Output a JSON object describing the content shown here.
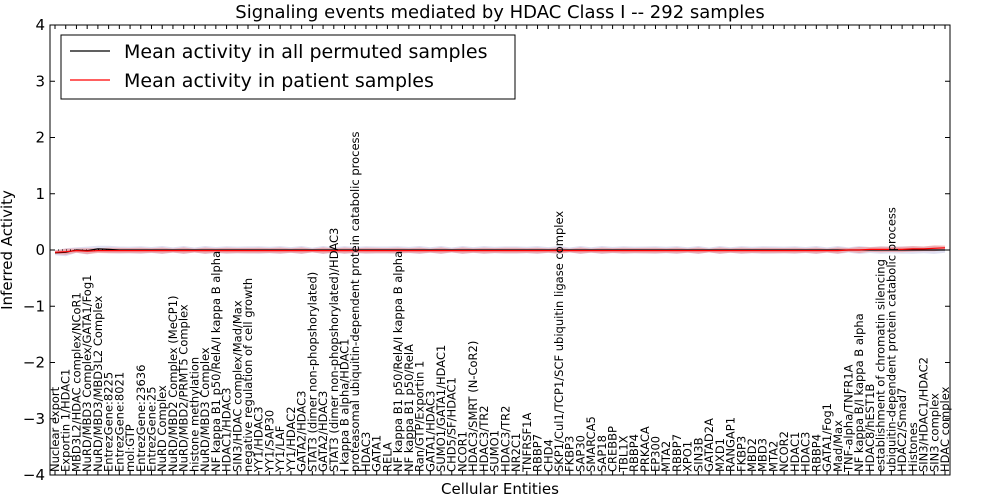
{
  "chart_data": {
    "type": "line",
    "title": "Signaling events mediated by HDAC Class I -- 292 samples",
    "xlabel": "Cellular Entities",
    "ylabel": "Inferred Activity",
    "ylim": [
      -4,
      4
    ],
    "yticks": [
      "4",
      "3",
      "2",
      "1",
      "0",
      "−1",
      "−2",
      "−3",
      "−4"
    ],
    "grid": false,
    "legend_position": "top-left",
    "legend": [
      {
        "label": "Mean activity in all permuted samples",
        "color": "#000000"
      },
      {
        "label": "Mean activity in patient samples",
        "color": "#ff0000"
      }
    ],
    "categories": [
      "Nuclear export",
      "Exportin 1/HDAC1",
      "MBD3L2/HDAC complex/NCoR1",
      "NuRD/MBD3 Complex/GATA1/Fog1",
      "NuRD/MBD3/MBD3L2 Complex",
      "EntrezGene:8225",
      "EntrezGene:8021",
      "mol:GTP",
      "EntrezGene:23636",
      "EntrezGene:25",
      "NuRD Complex",
      "NuRD/MBD2 Complex (MeCP1)",
      "NuRD/MBD2/PRMT5 Complex",
      "histone methylation",
      "NuRD/MBD3 Complex",
      "NF kappa B1 p50/RelA/I kappa B alpha",
      "HDAC1/HDAC3",
      "SIN3/HDAC complex/Mad/Max",
      "negative regulation of cell growth",
      "YY1/HDAC3",
      "YY1/SAP30",
      "YY1/LAF",
      "YY1/HDAC2",
      "GATA2/HDAC3",
      "STAT3 (dimer non-phopshorylated)",
      "GATA2/HDAC3",
      "STAT3 (dimer non-phopshorylated)/HDAC3",
      "I kappa B alpha/HDAC1",
      "proteasomal ubiquitin-dependent protein catabolic process",
      "HDAC3",
      "GATA1",
      "RELA",
      "NF kappa B1 p50/RelA/I kappa B alpha",
      "NF kappa B1 p50/RelA",
      "Ran/GTP/Exportin 1",
      "GATA1/HDAC3",
      "SUMO1/GATA1/HDAC1",
      "CHD5/SF/HDAC1",
      "NCOR1",
      "HDAC3/SMRT (N-CoR2)",
      "HDAC3/TR2",
      "SUMO1",
      "HDAC3/TR2",
      "NR2C1",
      "TNFRSF1A",
      "RBBP7",
      "CHD4",
      "SKP1/Cul1/TCP1/SCF ubiquitin ligase complex",
      "FKBP3",
      "SAP30",
      "SMARCA5",
      "SAP18",
      "CREBBP",
      "TBL1X",
      "RBBP4",
      "PRKACA",
      "EP300",
      "MTA2",
      "RBBP7",
      "XPO1",
      "SIN3B",
      "GATAD2A",
      "MXD1",
      "RANGAP1",
      "FKBP3",
      "MBD2",
      "MBD3",
      "MTA2",
      "NCOR2",
      "HDAC1",
      "HDAC3",
      "RBBP4",
      "GATA1/Fog1",
      "Mad/Max",
      "TNF-alpha/TNFR1A",
      "NF kappa B/I kappa B alpha",
      "HDAC8/hEST1B",
      "establishment of chromatin silencing",
      "ubiquitin-dependent protein catabolic process",
      "HDAC2/Smad7",
      "Histones",
      "SIN3/HDAC1/HDAC2",
      "SIN3 complex",
      "HDAC complex"
    ],
    "series": [
      {
        "name": "Mean activity in all permuted samples",
        "color": "#000000",
        "values": [
          -0.05,
          -0.04,
          0.0,
          -0.01,
          0.02,
          0.01,
          0.0,
          0.0,
          0.0,
          0.0,
          0.0,
          0.0,
          0.0,
          0.0,
          0.0,
          0.0,
          0.0,
          0.0,
          0.0,
          0.0,
          0.0,
          0.0,
          0.0,
          0.0,
          0.0,
          0.0,
          0.0,
          0.0,
          0.0,
          0.0,
          0.0,
          0.0,
          0.0,
          0.0,
          0.0,
          0.0,
          0.0,
          0.0,
          0.0,
          0.0,
          0.0,
          0.0,
          0.0,
          0.0,
          0.0,
          0.0,
          0.0,
          0.0,
          0.0,
          0.0,
          0.0,
          0.0,
          0.0,
          0.0,
          0.0,
          0.0,
          0.0,
          0.0,
          0.0,
          0.0,
          0.0,
          0.0,
          0.0,
          0.0,
          0.0,
          0.0,
          0.0,
          0.0,
          0.0,
          0.0,
          0.0,
          0.0,
          0.0,
          0.0,
          0.0,
          0.0,
          0.0,
          0.0,
          0.0,
          0.0,
          0.0,
          0.0,
          0.0,
          0.0
        ]
      },
      {
        "name": "Mean activity in patient samples",
        "color": "#ff0000",
        "values": [
          -0.04,
          -0.03,
          -0.01,
          -0.02,
          -0.01,
          -0.01,
          -0.01,
          -0.01,
          -0.01,
          -0.01,
          -0.01,
          -0.01,
          -0.01,
          -0.01,
          -0.01,
          -0.01,
          -0.01,
          -0.01,
          -0.01,
          -0.01,
          -0.01,
          -0.01,
          -0.01,
          -0.01,
          -0.01,
          -0.01,
          -0.01,
          -0.01,
          -0.01,
          -0.01,
          -0.01,
          -0.01,
          -0.01,
          -0.01,
          -0.01,
          -0.01,
          -0.01,
          -0.01,
          -0.01,
          -0.01,
          -0.01,
          -0.01,
          -0.01,
          -0.01,
          -0.01,
          -0.01,
          -0.01,
          -0.01,
          -0.01,
          -0.01,
          -0.01,
          -0.01,
          -0.01,
          -0.01,
          -0.01,
          -0.01,
          -0.01,
          -0.01,
          -0.01,
          -0.01,
          -0.01,
          -0.01,
          -0.01,
          -0.01,
          -0.01,
          -0.01,
          -0.01,
          -0.01,
          -0.01,
          -0.01,
          -0.01,
          -0.01,
          -0.01,
          -0.01,
          0.0,
          0.0,
          0.01,
          0.01,
          0.01,
          0.01,
          0.02,
          0.02,
          0.03,
          0.04
        ]
      }
    ]
  }
}
